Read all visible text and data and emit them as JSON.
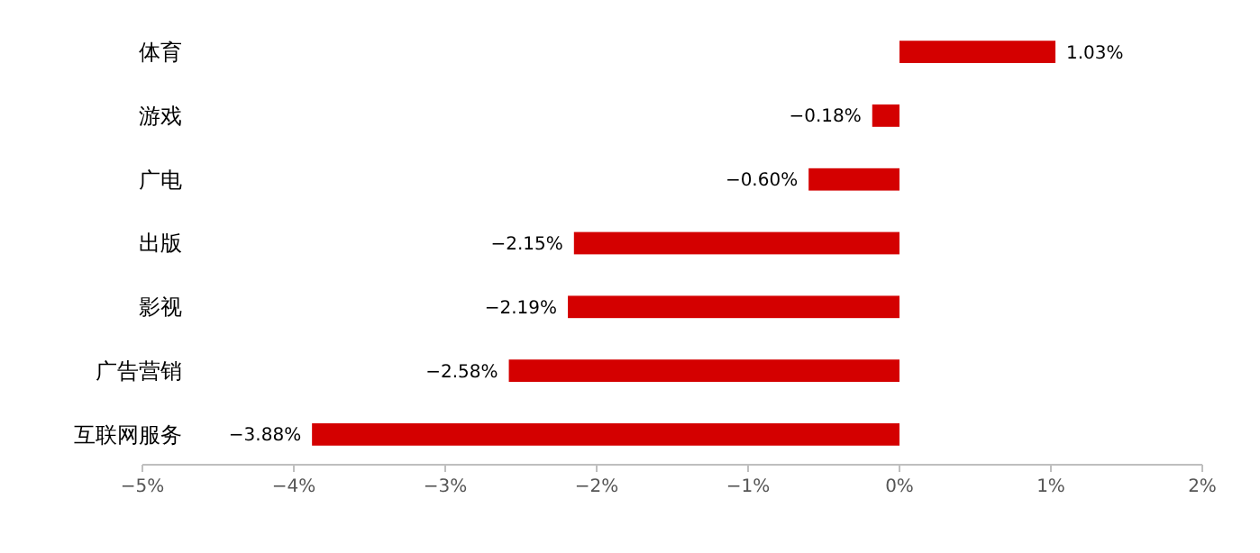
{
  "chart_data": {
    "type": "bar",
    "orientation": "horizontal",
    "categories": [
      "体育",
      "游戏",
      "广电",
      "出版",
      "影视",
      "广告营销",
      "互联网服务"
    ],
    "values": [
      1.03,
      -0.18,
      -0.6,
      -2.15,
      -2.19,
      -2.58,
      -3.88
    ],
    "value_labels": [
      "1.03%",
      "−0.18%",
      "−0.60%",
      "−2.15%",
      "−2.19%",
      "−2.58%",
      "−3.88%"
    ],
    "color": "#d40000",
    "xlim": [
      -5,
      2
    ],
    "xticks": [
      {
        "value": -5,
        "label": "−5%"
      },
      {
        "value": -4,
        "label": "−4%"
      },
      {
        "value": -3,
        "label": "−3%"
      },
      {
        "value": -2,
        "label": "−2%"
      },
      {
        "value": -1,
        "label": "−1%"
      },
      {
        "value": 0,
        "label": "0%"
      },
      {
        "value": 1,
        "label": "1%"
      },
      {
        "value": 2,
        "label": "2%"
      }
    ],
    "grid": false
  }
}
